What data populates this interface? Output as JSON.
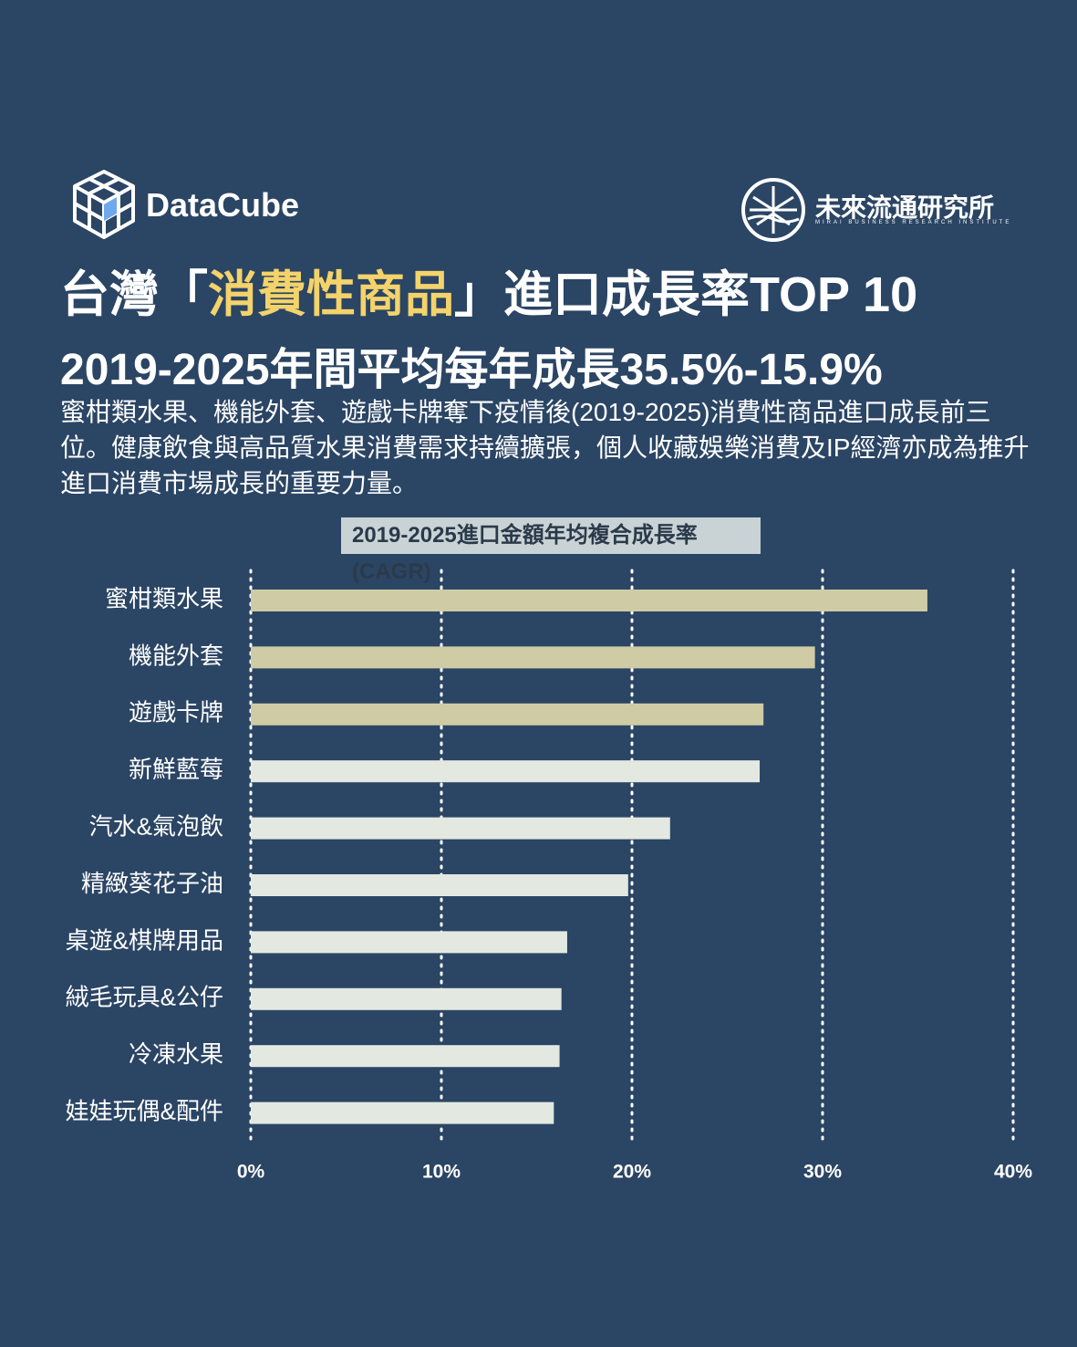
{
  "header": {
    "brand": "DataCube",
    "org": "未來流通研究所",
    "org_en": "MIRAI BUSINESS RESEARCH INSTITUTE",
    "title_parts": [
      "台灣「",
      "消費性商品",
      "」進口成長率TOP 10"
    ],
    "subtitle": "2019-2025年間平均每年成長35.5%-15.9%",
    "description": "蜜柑類水果、機能外套、遊戲卡牌奪下疫情後(2019-2025)消費性商品進口成長前三位。健康飲食與高品質水果消費需求持續擴張，個人收藏娛樂消費及IP經濟亦成為推升進口消費市場成長的重要力量。"
  },
  "chart_data": {
    "type": "hbar",
    "title": "2019-2025進口金額年均複合成長率(CAGR)",
    "categories": [
      "蜜柑類水果",
      "機能外套",
      "遊戲卡牌",
      "新鮮藍莓",
      "汽水&氣泡飲",
      "精緻葵花子油",
      "桌遊&棋牌用品",
      "絨毛玩具&公仔",
      "冷凍水果",
      "娃娃玩偶&配件"
    ],
    "values": [
      35.5,
      29.6,
      26.9,
      26.7,
      22.0,
      19.8,
      16.6,
      16.3,
      16.2,
      15.9
    ],
    "colors": [
      "#cfcba5",
      "#cfcba5",
      "#cfcba5",
      "#e3e9e1",
      "#e3e9e1",
      "#e3e9e1",
      "#e3e9e1",
      "#e3e9e1",
      "#e3e9e1",
      "#e3e9e1"
    ],
    "xlim": [
      0,
      40
    ],
    "xticks": [
      {
        "value": 0,
        "label": "0%"
      },
      {
        "value": 10,
        "label": "10%"
      },
      {
        "value": 20,
        "label": "20%"
      },
      {
        "value": 30,
        "label": "30%"
      },
      {
        "value": 40,
        "label": "40%"
      }
    ],
    "grid": true
  }
}
